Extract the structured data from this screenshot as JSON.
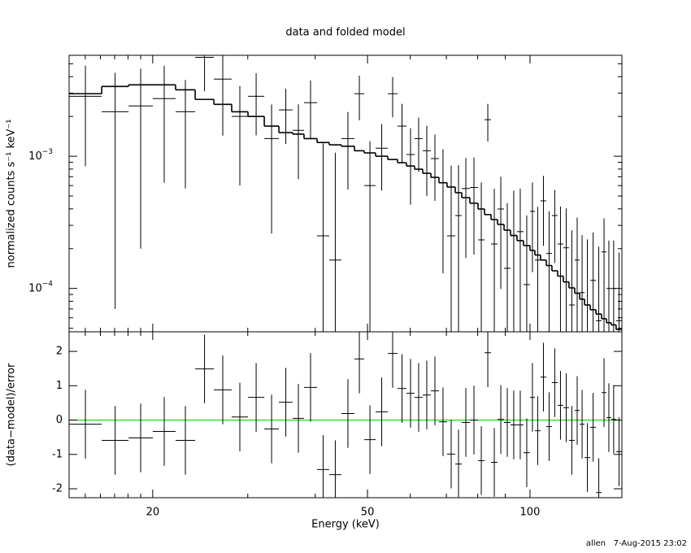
{
  "chart_data": [
    {
      "type": "errorbar",
      "title": "data and folded model",
      "ylabel": "normalized counts s⁻¹ keV⁻¹",
      "xscale": "log",
      "yscale": "log",
      "xlim": [
        14,
        148
      ],
      "ylim": [
        4.7e-05,
        0.0058
      ],
      "xticks": [
        20,
        50,
        100
      ],
      "xtick_labels": false,
      "xminorticks": [
        15,
        16,
        17,
        18,
        19,
        30,
        40,
        60,
        70,
        80,
        90
      ],
      "yticks": [
        {
          "value": 0.0001,
          "label": "10",
          "exponent": "−4"
        },
        {
          "value": 0.001,
          "label": "10",
          "exponent": "−3"
        }
      ],
      "yminorticks": [
        5e-05,
        6e-05,
        7e-05,
        8e-05,
        9e-05,
        0.0002,
        0.0003,
        0.0004,
        0.0005,
        0.0006,
        0.0007,
        0.0008,
        0.0009,
        0.002,
        0.003,
        0.004,
        0.005
      ],
      "bins": [
        14.0,
        16.09,
        18.04,
        20.01,
        22.05,
        23.97,
        25.96,
        28.01,
        30.03,
        32.19,
        34.26,
        36.34,
        38.14,
        40.32,
        42.46,
        44.73,
        47.29,
        49.31,
        51.76,
        54.52,
        56.83,
        59.04,
        61.12,
        63.28,
        65.52,
        67.82,
        70.21,
        72.7,
        74.75,
        77.38,
        80.11,
        82.38,
        84.69,
        87.07,
        89.52,
        92.02,
        94.6,
        97.27,
        100.0,
        102.1,
        104.6,
        107.2,
        109.8,
        112.5,
        115.3,
        118.1,
        121.0,
        123.6,
        126.2,
        129.3,
        132.5,
        135.7,
        138.6,
        141.4,
        144.4,
        148.0
      ],
      "data": {
        "color": "#000000",
        "values": [
          0.00284,
          0.00217,
          0.0024,
          0.00273,
          0.00217,
          0.0056,
          0.00383,
          0.002,
          0.00284,
          0.00136,
          0.00224,
          0.00157,
          0.00254,
          0.00025,
          0.000164,
          0.00136,
          0.00297,
          0.0006,
          0.00115,
          0.00297,
          0.00169,
          0.00103,
          0.00136,
          0.0011,
          0.00096,
          0.00063,
          0.00025,
          0.000356,
          0.00057,
          0.00058,
          0.000233,
          0.00189,
          0.000217,
          0.000399,
          0.000142,
          0.00025,
          0.000269,
          0.000107,
          0.000383,
          0.000164,
          0.00046,
          0.000184,
          0.000356,
          0.000217,
          0.000203,
          7.5e-05,
          0.000164,
          9.3e-05,
          7.5e-05,
          0.000115,
          5.7e-05,
          0.000189,
          0.0001,
          0.0001,
          5.7e-05
        ],
        "errors": [
          0.002,
          0.0021,
          0.0022,
          0.0021,
          0.0016,
          0.0025,
          0.0024,
          0.0014,
          0.0014,
          0.0011,
          0.001,
          0.0009,
          0.0012,
          0.001,
          0.0009,
          0.0008,
          0.0011,
          0.0007,
          0.0006,
          0.001,
          0.0008,
          0.0006,
          0.0006,
          0.0006,
          0.0005,
          0.0005,
          0.0006,
          0.0005,
          0.0004,
          0.0004,
          0.0004,
          0.0006,
          0.00035,
          0.0003,
          0.0003,
          0.0003,
          0.0003,
          0.00025,
          0.00025,
          0.00025,
          0.00025,
          0.0002,
          0.0002,
          0.0002,
          0.0002,
          0.0002,
          0.00018,
          0.00016,
          0.00016,
          0.00015,
          0.00015,
          0.00015,
          0.00013,
          0.00013,
          0.00013
        ]
      },
      "model": {
        "color": "#000000",
        "values": [
          0.00297,
          0.00337,
          0.00347,
          0.00347,
          0.00318,
          0.00269,
          0.00247,
          0.00217,
          0.002,
          0.00169,
          0.00151,
          0.00147,
          0.00136,
          0.00127,
          0.00122,
          0.00119,
          0.0011,
          0.00106,
          0.001,
          0.000945,
          0.000893,
          0.000844,
          0.000798,
          0.000743,
          0.000692,
          0.00063,
          0.000585,
          0.00053,
          0.000486,
          0.000441,
          0.000399,
          0.000362,
          0.000332,
          0.000305,
          0.000276,
          0.000252,
          0.00023,
          0.000211,
          0.000194,
          0.000179,
          0.000164,
          0.000149,
          0.000136,
          0.000124,
          0.000112,
          0.000101,
          9.2e-05,
          8.3e-05,
          7.5e-05,
          6.9e-05,
          6.4e-05,
          5.9e-05,
          5.5e-05,
          5.3e-05,
          4.9e-05
        ]
      }
    },
    {
      "type": "errorbar",
      "xlabel": "Energy (keV)",
      "ylabel": "(data−model)/error",
      "xscale": "log",
      "yscale": "linear",
      "xlim": [
        14,
        148
      ],
      "ylim": [
        -2.26,
        2.57
      ],
      "xticks": [
        20,
        50,
        100
      ],
      "xtick_labels": true,
      "xminorticks": [
        15,
        16,
        17,
        18,
        19,
        30,
        40,
        60,
        70,
        80,
        90
      ],
      "yticks": [
        -2,
        -1,
        0,
        1,
        2
      ],
      "bins": [
        14.0,
        16.09,
        18.04,
        20.01,
        22.05,
        23.97,
        25.96,
        28.01,
        30.03,
        32.19,
        34.26,
        36.34,
        38.14,
        40.32,
        42.46,
        44.73,
        47.29,
        49.31,
        51.76,
        54.52,
        56.83,
        59.04,
        61.12,
        63.28,
        65.52,
        67.82,
        70.21,
        72.7,
        74.75,
        77.38,
        80.11,
        82.38,
        84.69,
        87.07,
        89.52,
        92.02,
        94.6,
        97.27,
        100.0,
        102.1,
        104.6,
        107.2,
        109.8,
        112.5,
        115.3,
        118.1,
        121.0,
        123.6,
        126.2,
        129.3,
        132.5,
        135.7,
        138.6,
        141.4,
        144.4,
        148.0
      ],
      "reference_line": {
        "value": 0,
        "color": "#00dd00"
      },
      "data": {
        "color": "#000000",
        "values": [
          -0.12,
          -0.59,
          -0.52,
          -0.33,
          -0.59,
          1.49,
          0.88,
          0.09,
          0.66,
          -0.26,
          0.52,
          0.05,
          0.95,
          -1.44,
          -1.59,
          0.19,
          1.78,
          -0.57,
          0.24,
          1.94,
          0.92,
          0.78,
          0.66,
          0.73,
          0.85,
          -0.05,
          -0.99,
          -1.28,
          -0.07,
          0.0,
          -1.18,
          1.96,
          -1.23,
          0.02,
          -0.07,
          -0.14,
          -0.14,
          -0.95,
          0.66,
          -0.31,
          1.25,
          -0.19,
          1.09,
          0.43,
          0.36,
          -0.59,
          0.28,
          -0.12,
          -1.09,
          -0.21,
          -2.11,
          0.8,
          0.07,
          0.02,
          -0.92
        ],
        "errors": [
          1,
          1,
          1,
          1,
          1,
          1,
          1,
          1,
          1,
          1,
          1,
          1,
          1,
          1,
          1,
          1,
          1,
          1,
          1,
          1,
          1,
          1,
          1,
          1,
          1,
          1,
          1,
          1,
          1,
          1,
          1,
          1,
          1,
          1,
          1,
          1,
          1,
          1,
          1,
          1,
          1,
          1,
          1,
          1,
          1,
          1,
          1,
          1,
          1,
          1,
          1,
          1,
          1,
          1,
          1
        ]
      }
    }
  ],
  "footer": {
    "user": "allen",
    "timestamp": "7-Aug-2015 23:02"
  }
}
